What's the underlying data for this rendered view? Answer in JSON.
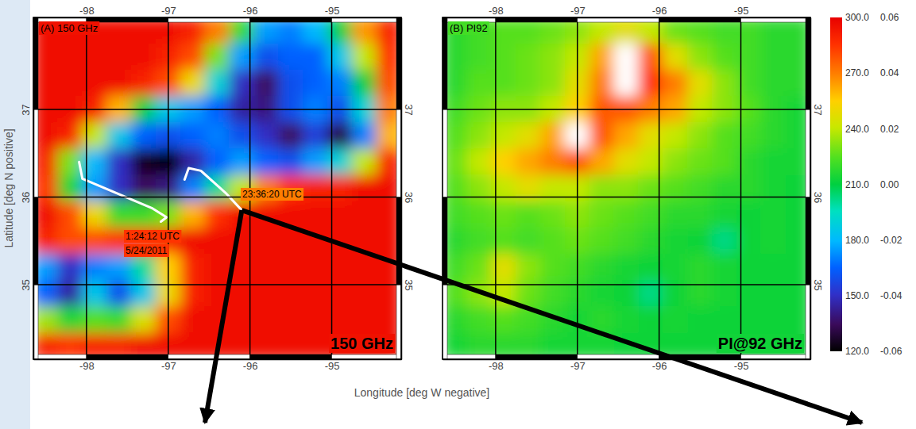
{
  "chart_data": [
    {
      "type": "heatmap",
      "title": "(A) 150 GHz",
      "label": "150 GHz",
      "xlabel": "Longitude [deg W negative]",
      "ylabel": "Latitude [deg N positive]",
      "xlim": [
        -98.65,
        -94.15
      ],
      "ylim": [
        34.15,
        38.05
      ],
      "xticks": [
        -98,
        -97,
        -96,
        -95
      ],
      "yticks": [
        35,
        36,
        37
      ],
      "grid": true,
      "x": [
        -98.5,
        -98.2,
        -97.9,
        -97.6,
        -97.3,
        -97.0,
        -96.7,
        -96.4,
        -96.1,
        -95.8,
        -95.5,
        -95.2,
        -94.9,
        -94.6,
        -94.3
      ],
      "y": [
        37.9,
        37.6,
        37.3,
        37.0,
        36.7,
        36.4,
        36.1,
        35.8,
        35.5,
        35.2,
        34.9,
        34.6,
        34.3
      ],
      "z": [
        [
          295,
          295,
          295,
          295,
          295,
          295,
          290,
          270,
          220,
          175,
          170,
          180,
          210,
          265,
          290
        ],
        [
          295,
          295,
          295,
          295,
          295,
          290,
          280,
          230,
          175,
          160,
          165,
          165,
          185,
          240,
          285
        ],
        [
          295,
          295,
          295,
          295,
          290,
          280,
          250,
          190,
          150,
          135,
          160,
          165,
          170,
          210,
          280
        ],
        [
          295,
          295,
          290,
          260,
          210,
          185,
          175,
          165,
          145,
          140,
          160,
          170,
          160,
          190,
          270
        ],
        [
          295,
          290,
          240,
          185,
          165,
          160,
          165,
          170,
          160,
          150,
          135,
          155,
          130,
          170,
          260
        ],
        [
          290,
          230,
          180,
          150,
          125,
          120,
          145,
          165,
          175,
          165,
          160,
          175,
          190,
          240,
          290
        ],
        [
          285,
          215,
          175,
          150,
          135,
          140,
          170,
          200,
          240,
          270,
          285,
          290,
          290,
          295,
          295
        ],
        [
          295,
          280,
          250,
          220,
          220,
          230,
          260,
          285,
          295,
          295,
          295,
          295,
          295,
          295,
          295
        ],
        [
          290,
          280,
          280,
          285,
          285,
          290,
          295,
          295,
          295,
          295,
          295,
          295,
          295,
          295,
          295
        ],
        [
          175,
          150,
          170,
          175,
          200,
          255,
          290,
          295,
          295,
          295,
          295,
          295,
          295,
          295,
          295
        ],
        [
          165,
          145,
          185,
          160,
          185,
          250,
          290,
          295,
          295,
          295,
          295,
          295,
          295,
          295,
          295
        ],
        [
          235,
          215,
          225,
          220,
          245,
          280,
          295,
          295,
          295,
          295,
          295,
          295,
          295,
          295,
          295
        ],
        [
          290,
          285,
          290,
          290,
          295,
          295,
          295,
          295,
          295,
          295,
          295,
          295,
          295,
          295,
          295
        ]
      ],
      "colorbar": {
        "range": [
          120,
          300
        ],
        "ticks": [
          {
            "value": 120,
            "label": "120.0"
          },
          {
            "value": 150,
            "label": "150.0"
          },
          {
            "value": 180,
            "label": "180.0"
          },
          {
            "value": 210,
            "label": "210.0"
          },
          {
            "value": 240,
            "label": "240.0"
          },
          {
            "value": 270,
            "label": "270.0"
          },
          {
            "value": 300,
            "label": "300.0"
          }
        ]
      },
      "tracks": [
        {
          "x": [
            -96.8,
            -96.75,
            -96.6,
            -96.3,
            -96.1
          ],
          "y": [
            36.2,
            36.33,
            36.3,
            36.05,
            35.85
          ]
        },
        {
          "x": [
            -98.09,
            -98.05,
            -97.62,
            -97.19,
            -97.02,
            -97.09
          ],
          "y": [
            36.4,
            36.21,
            36.04,
            35.87,
            35.77,
            35.72
          ]
        }
      ],
      "annotations": [
        "23:36:20 UTC",
        "1:24:12 UTC",
        "5/24/2011"
      ]
    },
    {
      "type": "heatmap",
      "title": "(B) PI92",
      "label": "PI@92 GHz",
      "xlim": [
        -98.65,
        -94.15
      ],
      "ylim": [
        34.15,
        38.05
      ],
      "xticks": [
        -98,
        -97,
        -96,
        -95
      ],
      "yticks": [
        35,
        36,
        37
      ],
      "grid": true,
      "x": [
        -98.5,
        -98.2,
        -97.9,
        -97.6,
        -97.3,
        -97.0,
        -96.7,
        -96.4,
        -96.1,
        -95.8,
        -95.5,
        -95.2,
        -94.9,
        -94.6,
        -94.3
      ],
      "y": [
        37.9,
        37.6,
        37.3,
        37.0,
        36.7,
        36.4,
        36.1,
        35.8,
        35.5,
        35.2,
        34.9,
        34.6,
        34.3
      ],
      "z": [
        [
          0.005,
          0.008,
          0.01,
          0.01,
          0.012,
          0.015,
          0.02,
          0.025,
          0.02,
          0.012,
          0.01,
          0.008,
          0.008,
          0.005,
          0.005
        ],
        [
          0.005,
          0.008,
          0.01,
          0.012,
          0.015,
          0.02,
          0.035,
          0.07,
          0.045,
          0.025,
          0.015,
          0.01,
          0.008,
          0.005,
          0.005
        ],
        [
          0.005,
          0.01,
          0.01,
          0.012,
          0.015,
          0.025,
          0.04,
          0.065,
          0.05,
          0.04,
          0.025,
          0.015,
          0.008,
          0.005,
          0.005
        ],
        [
          0.008,
          0.012,
          0.015,
          0.015,
          0.02,
          0.03,
          0.045,
          0.045,
          0.04,
          0.035,
          0.02,
          0.015,
          0.01,
          0.005,
          0.003
        ],
        [
          0.01,
          0.015,
          0.02,
          0.025,
          0.035,
          0.07,
          0.045,
          0.035,
          0.025,
          0.02,
          0.015,
          0.01,
          0.008,
          0.005,
          0.003
        ],
        [
          0.012,
          0.02,
          0.03,
          0.035,
          0.04,
          0.045,
          0.035,
          0.025,
          0.02,
          0.015,
          0.012,
          0.01,
          0.005,
          0.003,
          0.003
        ],
        [
          0.01,
          0.015,
          0.02,
          0.025,
          0.02,
          0.02,
          0.015,
          0.015,
          0.012,
          0.01,
          0.008,
          0.005,
          0.005,
          0.003,
          0.002
        ],
        [
          0.008,
          0.01,
          0.012,
          0.01,
          0.012,
          0.015,
          0.012,
          0.01,
          0.008,
          0.005,
          0.005,
          0.003,
          0.002,
          0.003,
          0.002
        ],
        [
          0.005,
          0.008,
          0.01,
          0.008,
          0.01,
          0.012,
          0.01,
          0.008,
          0.005,
          0.003,
          0.002,
          -0.005,
          0.002,
          0.003,
          0.002
        ],
        [
          0.008,
          0.012,
          0.025,
          0.015,
          0.01,
          0.008,
          0.005,
          0.003,
          0.002,
          0.003,
          0.005,
          0.003,
          0.002,
          0.002,
          0.002
        ],
        [
          0.01,
          0.015,
          0.02,
          0.012,
          0.008,
          0.005,
          0.003,
          0.002,
          -0.005,
          0.002,
          0.005,
          0.003,
          0.002,
          0.002,
          0.002
        ],
        [
          0.005,
          0.008,
          0.01,
          0.008,
          0.005,
          0.003,
          0.005,
          0.003,
          0.002,
          0.003,
          0.002,
          0.002,
          0.002,
          0.002,
          0.002
        ],
        [
          0.003,
          0.005,
          0.005,
          0.005,
          0.003,
          0.003,
          0.003,
          0.002,
          0.002,
          0.002,
          0.002,
          0.002,
          0.002,
          0.002,
          0.002
        ]
      ],
      "colorbar": {
        "range": [
          -0.06,
          0.06
        ],
        "ticks": [
          -0.06,
          -0.04,
          -0.02,
          {
            "value": 0,
            "label": "0.00"
          },
          0.02,
          0.04,
          0.06
        ]
      }
    }
  ]
}
